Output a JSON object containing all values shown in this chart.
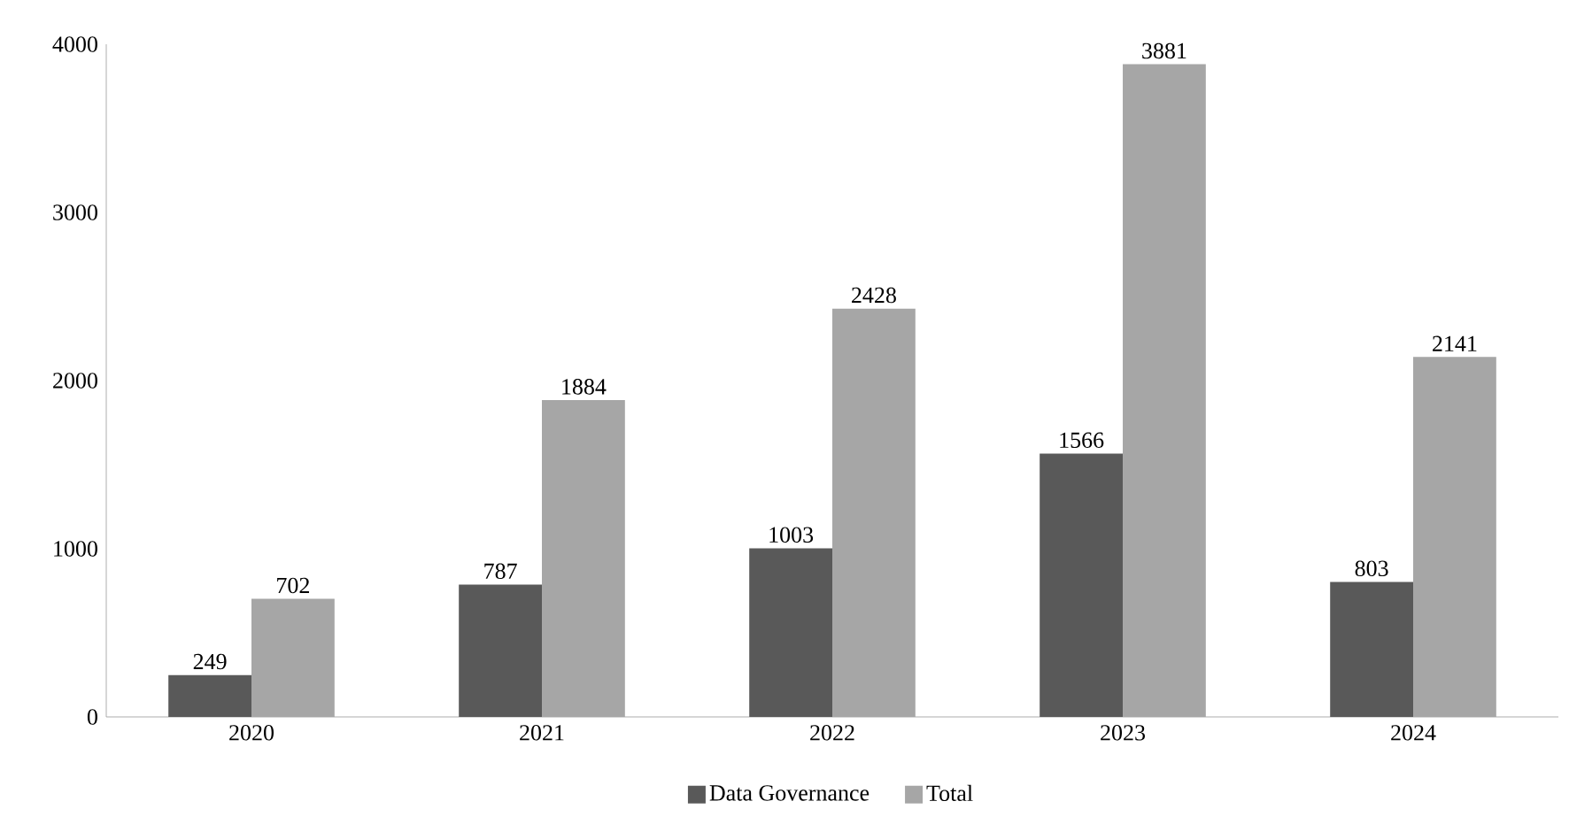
{
  "chart_data": {
    "type": "bar",
    "categories": [
      "2020",
      "2021",
      "2022",
      "2023",
      "2024"
    ],
    "series": [
      {
        "name": "Data Governance",
        "color": "#595959",
        "values": [
          249,
          787,
          1003,
          1566,
          803
        ]
      },
      {
        "name": "Total",
        "color": "#a6a6a6",
        "values": [
          702,
          1884,
          2428,
          3881,
          2141
        ]
      }
    ],
    "ylim": [
      0,
      4000
    ],
    "yticks": [
      0,
      1000,
      2000,
      3000,
      4000
    ],
    "data_labels": true,
    "legend": "bottom",
    "grid": false
  }
}
